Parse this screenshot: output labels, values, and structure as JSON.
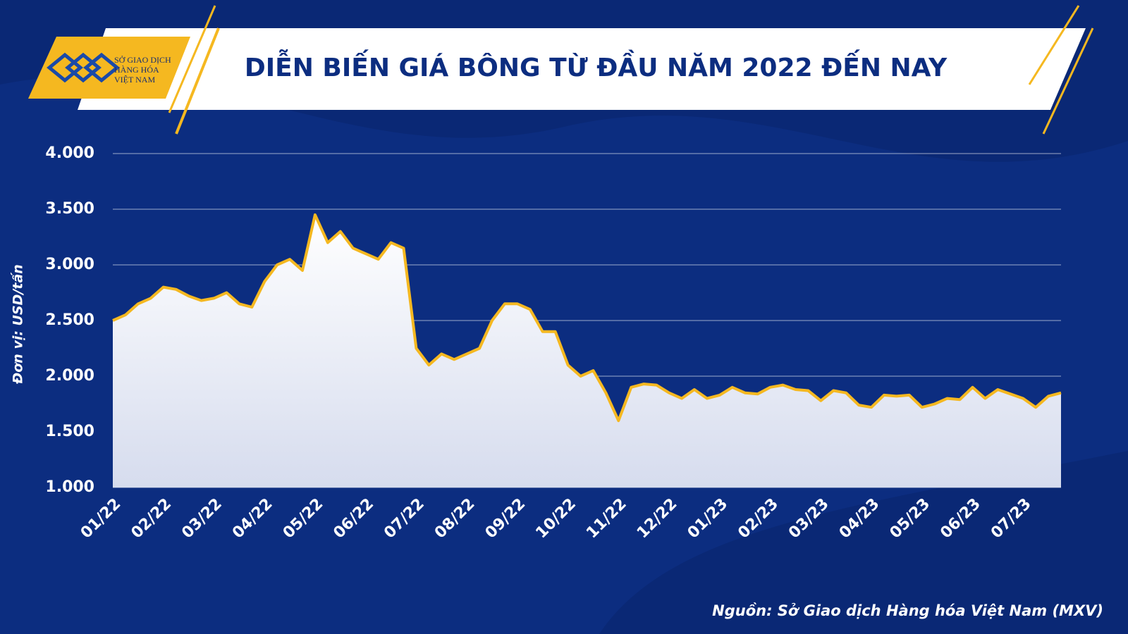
{
  "logo": {
    "lines": [
      "SỞ GIAO DỊCH",
      "HÀNG HÓA",
      "VIỆT NAM"
    ]
  },
  "chart_data": {
    "type": "area",
    "title": "DIỄN BIẾN GIÁ BÔNG TỪ ĐẦU NĂM 2022 ĐẾN NAY",
    "y_label": "Đơn vị: USD/tấn",
    "source": "Nguồn: Sở Giao dịch Hàng hóa Việt Nam (MXV)",
    "color": "#f5b820",
    "grid": true,
    "categories": [
      "01/22",
      null,
      null,
      null,
      "02/22",
      null,
      null,
      null,
      "03/22",
      null,
      null,
      null,
      "04/22",
      null,
      null,
      null,
      "05/22",
      null,
      null,
      null,
      "06/22",
      null,
      null,
      null,
      "07/22",
      null,
      null,
      null,
      "08/22",
      null,
      null,
      null,
      "09/22",
      null,
      null,
      null,
      "10/22",
      null,
      null,
      null,
      "11/22",
      null,
      null,
      null,
      "12/22",
      null,
      null,
      null,
      "01/23",
      null,
      null,
      null,
      "02/23",
      null,
      null,
      null,
      "03/23",
      null,
      null,
      null,
      "04/23",
      null,
      null,
      null,
      "05/23",
      null,
      null,
      null,
      "06/23",
      null,
      null,
      null,
      "07/23",
      null,
      null,
      null
    ],
    "values": [
      2500,
      2550,
      2650,
      2700,
      2800,
      2780,
      2720,
      2680,
      2700,
      2750,
      2650,
      2620,
      2850,
      3000,
      3050,
      2950,
      3450,
      3200,
      3300,
      3150,
      3100,
      3050,
      3200,
      3150,
      2250,
      2100,
      2200,
      2150,
      2200,
      2250,
      2500,
      2650,
      2650,
      2600,
      2400,
      2400,
      2100,
      2000,
      2050,
      1850,
      1600,
      1900,
      1930,
      1920,
      1850,
      1800,
      1880,
      1800,
      1830,
      1900,
      1850,
      1840,
      1900,
      1920,
      1880,
      1870,
      1780,
      1870,
      1850,
      1740,
      1720,
      1830,
      1820,
      1830,
      1720,
      1750,
      1800,
      1790,
      1900,
      1800,
      1880,
      1840,
      1800,
      1720,
      1820,
      1850
    ],
    "ylim": [
      1000,
      4000
    ],
    "yticks": [
      {
        "value": 1000,
        "label": "1.000"
      },
      {
        "value": 1500,
        "label": "1.500"
      },
      {
        "value": 2000,
        "label": "2.000"
      },
      {
        "value": 2500,
        "label": "2.500"
      },
      {
        "value": 3000,
        "label": "3.000"
      },
      {
        "value": 3500,
        "label": "3.500"
      },
      {
        "value": 4000,
        "label": "4.000"
      }
    ]
  }
}
